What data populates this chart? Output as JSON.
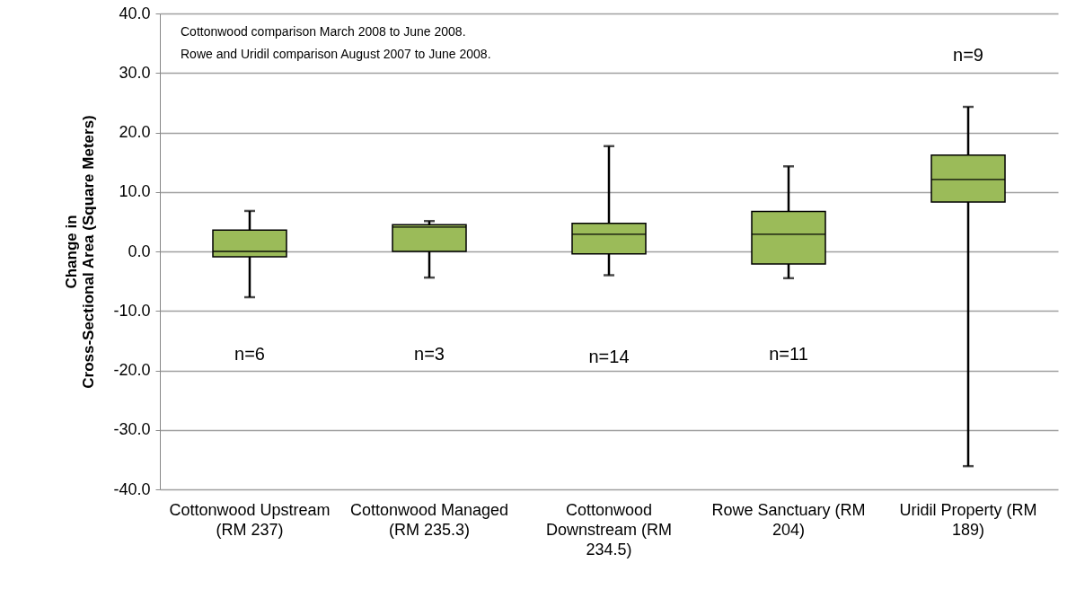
{
  "chart_data": {
    "type": "box",
    "ylabel": "Change in\nCross-Sectional Area (Square Meters)",
    "categories": [
      "Cottonwood Upstream (RM 237)",
      "Cottonwood Managed (RM 235.3)",
      "Cottonwood Downstream (RM 234.5)",
      "Rowe Sanctuary (RM 204)",
      "Uridil Property (RM 189)"
    ],
    "series": [
      {
        "color": "#9bbb59",
        "boxes": [
          {
            "low": -7.7,
            "q1": -0.9,
            "median": 0,
            "q3": 3.6,
            "high": 6.8
          },
          {
            "low": -4.4,
            "q1": 0,
            "median": 4.1,
            "q3": 4.5,
            "high": 5.1
          },
          {
            "low": -4.0,
            "q1": -0.4,
            "median": 2.9,
            "q3": 4.7,
            "high": 17.7
          },
          {
            "low": -4.5,
            "q1": -2.1,
            "median": 2.9,
            "q3": 6.7,
            "high": 14.3
          },
          {
            "low": -36.1,
            "q1": 8.3,
            "median": 12.1,
            "q3": 16.2,
            "high": 24.3
          }
        ]
      }
    ],
    "ylim": [
      -40,
      40
    ],
    "yticks": [
      {
        "value": -40,
        "label": "-40.0"
      },
      {
        "value": -30,
        "label": "-30.0"
      },
      {
        "value": -20,
        "label": "-20.0"
      },
      {
        "value": -10,
        "label": "-10.0"
      },
      {
        "value": 0,
        "label": "0.0"
      },
      {
        "value": 10,
        "label": "10.0"
      },
      {
        "value": 20,
        "label": "20.0"
      },
      {
        "value": 30,
        "label": "30.0"
      },
      {
        "value": 40,
        "label": "40.0"
      }
    ],
    "grid": "y",
    "annotations": [
      "Cottonwood  comparison March 2008 to June 2008.",
      "Rowe and Uridil comparison August 2007 to June 2008.",
      "n=6",
      "n=3",
      "n=14",
      "n=11",
      "n=9"
    ]
  }
}
